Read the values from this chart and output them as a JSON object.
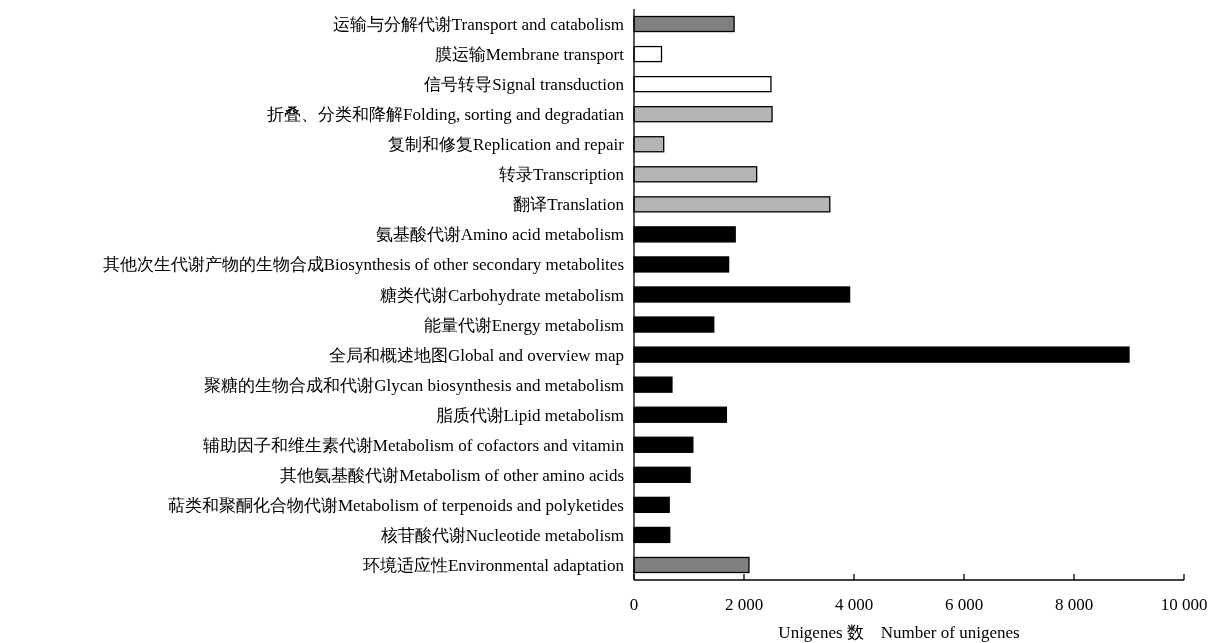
{
  "chart_data": {
    "type": "bar",
    "orientation": "horizontal",
    "xlabel": "Unigenes 数　Number of unigenes",
    "categories": [
      "运输与分解代谢Transport and catabolism",
      "膜运输Membrane transport",
      "信号转导Signal transduction",
      "折叠、分类和降解Folding, sorting and degradatian",
      "复制和修复Replication and repair",
      "转录Transcription",
      "翻译Translation",
      "氨基酸代谢Amino acid metabolism",
      "其他次生代谢产物的生物合成Biosynthesis of other secondary metabolites",
      "糖类代谢Carbohydrate metabolism",
      "能量代谢Energy metabolism",
      "全局和概述地图Global and overview map",
      "聚糖的生物合成和代谢Glycan biosynthesis and metabolism",
      "脂质代谢Lipid metabolism",
      "辅助因子和维生素代谢Metabolism of cofactors and vitamin",
      "其他氨基酸代谢Metabolism of other amino acids",
      "萜类和聚酮化合物代谢Metabolism of terpenoids and polyketides",
      "核苷酸代谢Nucleotide metabolism",
      "环境适应性Environmental adaptation"
    ],
    "values": [
      1820,
      500,
      2490,
      2510,
      540,
      2230,
      3560,
      1840,
      1720,
      3920,
      1450,
      9000,
      690,
      1680,
      1070,
      1020,
      640,
      650,
      2090
    ],
    "colors": [
      "#808080",
      "#ffffff",
      "#ffffff",
      "#b4b4b4",
      "#b4b4b4",
      "#b4b4b4",
      "#b4b4b4",
      "#000000",
      "#000000",
      "#000000",
      "#000000",
      "#000000",
      "#000000",
      "#000000",
      "#000000",
      "#000000",
      "#000000",
      "#000000",
      "#808080"
    ],
    "xlim": [
      0,
      10000
    ],
    "xticks": [
      0,
      {
        "value": 2000,
        "label": "2 000"
      },
      {
        "value": 4000,
        "label": "4 000"
      },
      {
        "value": 6000,
        "label": "6 000"
      },
      {
        "value": 8000,
        "label": "8 000"
      },
      {
        "value": 10000,
        "label": "10 000"
      }
    ],
    "grid": false
  }
}
